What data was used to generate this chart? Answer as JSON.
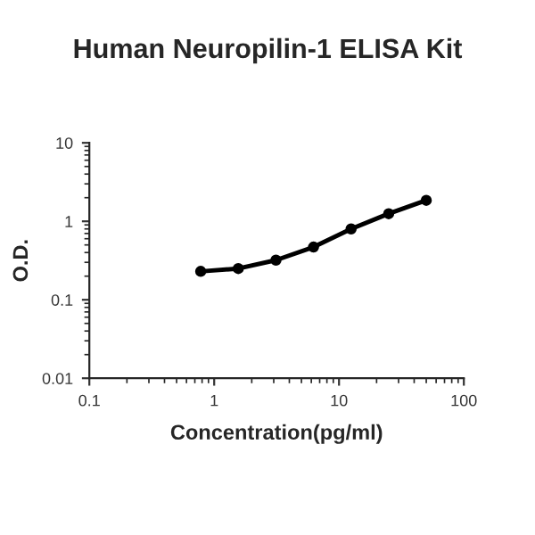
{
  "chart_data": {
    "type": "line",
    "title": "Human Neuropilin-1 ELISA Kit",
    "xlabel": "Concentration(pg/ml)",
    "ylabel": "O.D.",
    "x": [
      0.78,
      1.56,
      3.125,
      6.25,
      12.5,
      25,
      50
    ],
    "series": [
      {
        "color": "#000000",
        "values": [
          0.23,
          0.25,
          0.32,
          0.47,
          0.8,
          1.25,
          1.85
        ]
      }
    ],
    "log": "xy",
    "marker": "circle",
    "line_style": "solid",
    "grid": false,
    "legend": false,
    "xlim": [
      0.1,
      100
    ],
    "xticks": [
      0.1,
      1,
      10,
      100
    ],
    "ylim": [
      0.01,
      10
    ],
    "yticks": [
      0.01,
      0.1,
      1,
      10
    ]
  }
}
